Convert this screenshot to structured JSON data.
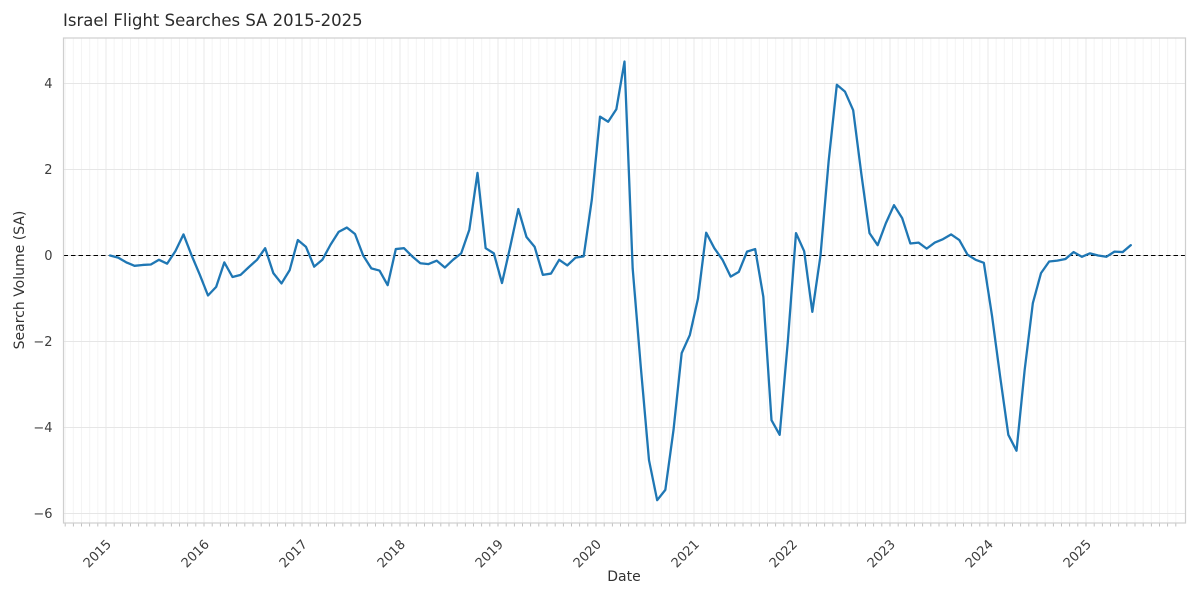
{
  "chart_data": {
    "type": "line",
    "title": "Israel Flight Searches SA 2015-2025",
    "xlabel": "Date",
    "ylabel": "Search Volume (SA)",
    "freq": "monthly",
    "x_start": "2015-01",
    "x_end": "2025-06",
    "ylim": [
      -6.2,
      5.05
    ],
    "grid": true,
    "legend": false,
    "x_tick_labels": [
      "2015",
      "2016",
      "2017",
      "2018",
      "2019",
      "2020",
      "2021",
      "2022",
      "2023",
      "2024",
      "2025"
    ],
    "y_tick_values": [
      4,
      2,
      0,
      -2,
      -4,
      -6
    ],
    "y_tick_labels": [
      "4",
      "2",
      "0",
      "−2",
      "−4",
      "−6"
    ],
    "zero_line": {
      "y": 0,
      "style": "dashed",
      "color": "#000000"
    },
    "series": [
      {
        "name": "Search Volume (SA)",
        "color": "#1f77b4",
        "values": [
          0.0,
          -0.05,
          -0.16,
          -0.24,
          -0.22,
          -0.21,
          -0.1,
          -0.19,
          0.1,
          0.49,
          0.0,
          -0.45,
          -0.93,
          -0.73,
          -0.16,
          -0.5,
          -0.45,
          -0.27,
          -0.1,
          0.17,
          -0.41,
          -0.65,
          -0.34,
          0.36,
          0.2,
          -0.26,
          -0.1,
          0.25,
          0.55,
          0.65,
          0.5,
          0.0,
          -0.3,
          -0.35,
          -0.69,
          0.15,
          0.17,
          -0.02,
          -0.18,
          -0.2,
          -0.12,
          -0.28,
          -0.1,
          0.05,
          0.6,
          1.92,
          0.17,
          0.05,
          -0.64,
          0.2,
          1.08,
          0.43,
          0.2,
          -0.45,
          -0.42,
          -0.1,
          -0.23,
          -0.05,
          -0.02,
          1.3,
          3.23,
          3.11,
          3.4,
          4.51,
          -0.3,
          -2.6,
          -4.76,
          -5.69,
          -5.45,
          -4.06,
          -2.27,
          -1.85,
          -1.0,
          0.53,
          0.17,
          -0.1,
          -0.49,
          -0.38,
          0.09,
          0.15,
          -0.96,
          -3.83,
          -4.17,
          -2.0,
          0.52,
          0.1,
          -1.31,
          0.0,
          2.2,
          3.97,
          3.81,
          3.38,
          1.9,
          0.52,
          0.24,
          0.75,
          1.17,
          0.87,
          0.28,
          0.3,
          0.16,
          0.3,
          0.38,
          0.49,
          0.36,
          0.02,
          -0.1,
          -0.17,
          -1.4,
          -2.82,
          -4.17,
          -4.54,
          -2.66,
          -1.11,
          -0.41,
          -0.14,
          -0.12,
          -0.08,
          0.08,
          -0.03,
          0.05,
          0.0,
          -0.03,
          0.09,
          0.08,
          0.24
        ]
      }
    ]
  }
}
